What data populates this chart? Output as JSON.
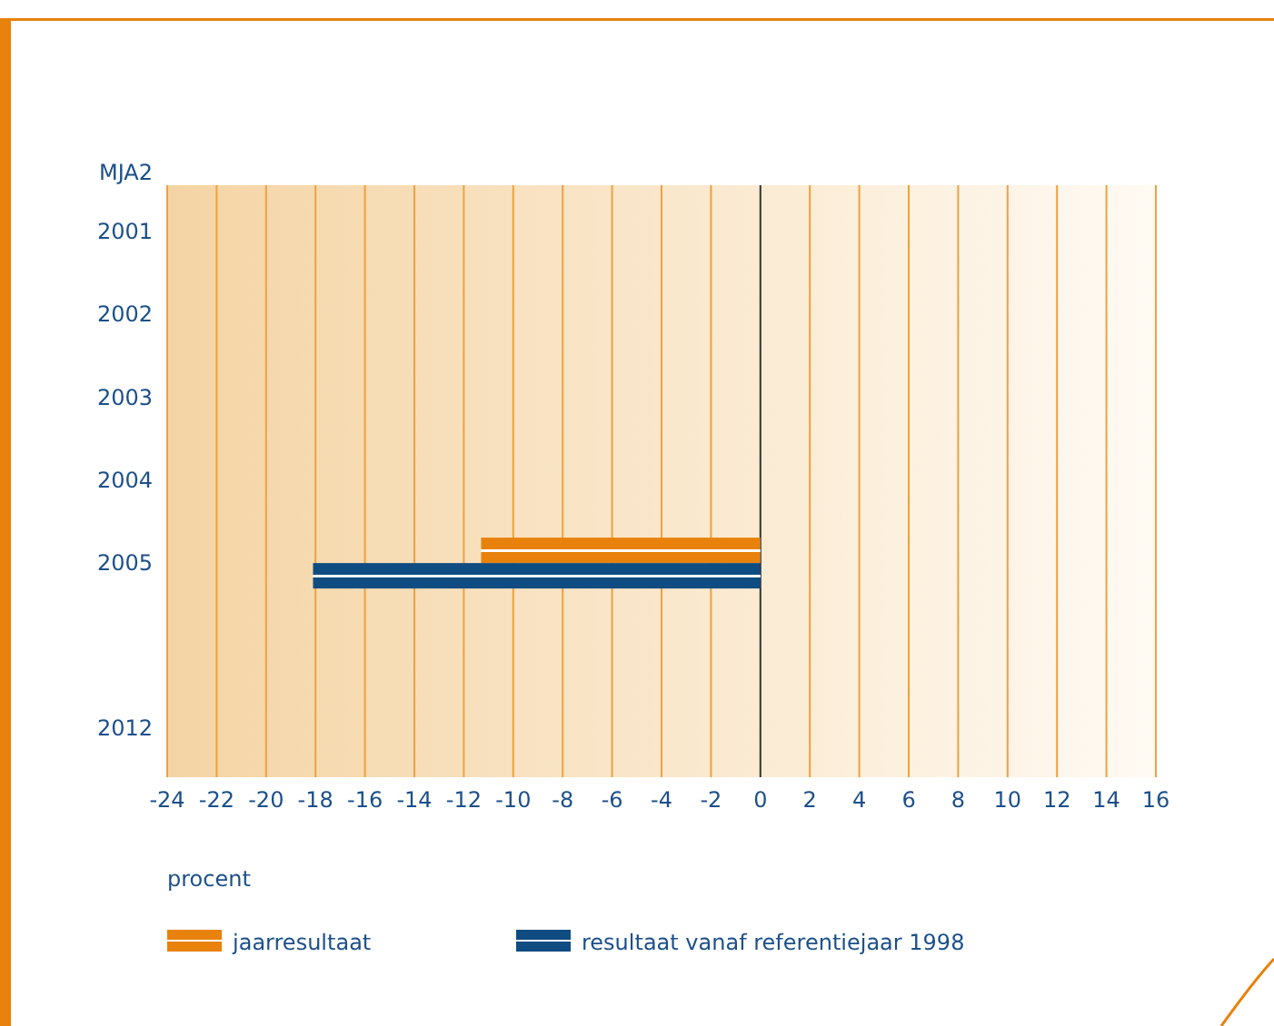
{
  "chart_data": {
    "type": "bar",
    "orientation": "horizontal",
    "ylabel": "MJA2",
    "xlabel": "procent",
    "categories": [
      "2001",
      "2002",
      "2003",
      "2004",
      "2005",
      null,
      "2012"
    ],
    "series": [
      {
        "name": "jaarresultaat",
        "color": "#e8820c",
        "values": [
          null,
          null,
          null,
          null,
          -11.3,
          null,
          null
        ]
      },
      {
        "name": "resultaat vanaf referentiejaar 1998",
        "color": "#0f4c81",
        "values": [
          null,
          null,
          null,
          null,
          -18.1,
          null,
          null
        ]
      }
    ],
    "xlim": [
      -24,
      16
    ],
    "xticks": [
      -24,
      -22,
      -20,
      -18,
      -16,
      -14,
      -12,
      -10,
      -8,
      -6,
      -4,
      -2,
      0,
      2,
      4,
      6,
      8,
      10,
      12,
      14,
      16
    ],
    "grid": "x",
    "legend": "bottom"
  }
}
